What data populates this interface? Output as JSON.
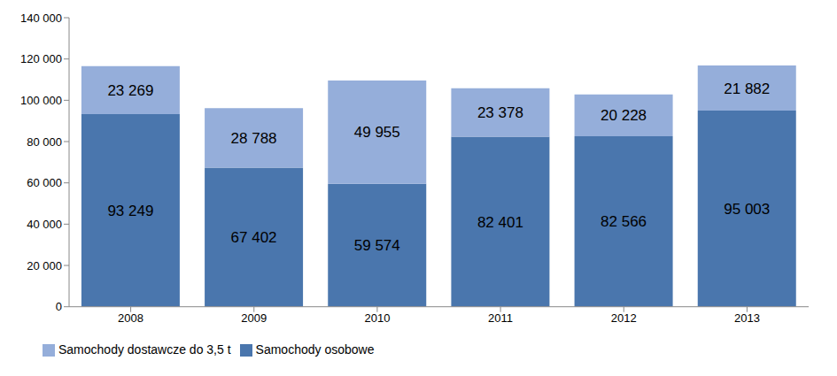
{
  "chart_data": {
    "type": "bar",
    "stacked": true,
    "data_labels": true,
    "grid": false,
    "legend": "bottom",
    "categories": [
      "2008",
      "2009",
      "2010",
      "2011",
      "2012",
      "2013"
    ],
    "ylim": [
      0,
      140000
    ],
    "yticks": [
      0,
      {
        "value": 20000,
        "label": "20 000"
      },
      {
        "value": 40000,
        "label": "40 000"
      },
      {
        "value": 60000,
        "label": "60 000"
      },
      {
        "value": 80000,
        "label": "80 000"
      },
      {
        "value": 100000,
        "label": "100 000"
      },
      {
        "value": 120000,
        "label": "120 000"
      },
      {
        "value": 140000,
        "label": "140 000"
      }
    ],
    "series": [
      {
        "name": "Samochody osobowe",
        "color": "#4A76AD",
        "values": [
          93249,
          67402,
          59574,
          82401,
          82566,
          95003
        ],
        "value_labels": [
          "93 249",
          "67 402",
          "59 574",
          "82 401",
          "82 566",
          "95 003"
        ]
      },
      {
        "name": "Samochody dostawcze do 3,5 t",
        "color": "#95AEDA",
        "values": [
          23269,
          28788,
          49955,
          23378,
          20228,
          21882
        ],
        "value_labels": [
          "23 269",
          "28 788",
          "49 955",
          "23 378",
          "20 228",
          "21 882"
        ]
      }
    ]
  }
}
